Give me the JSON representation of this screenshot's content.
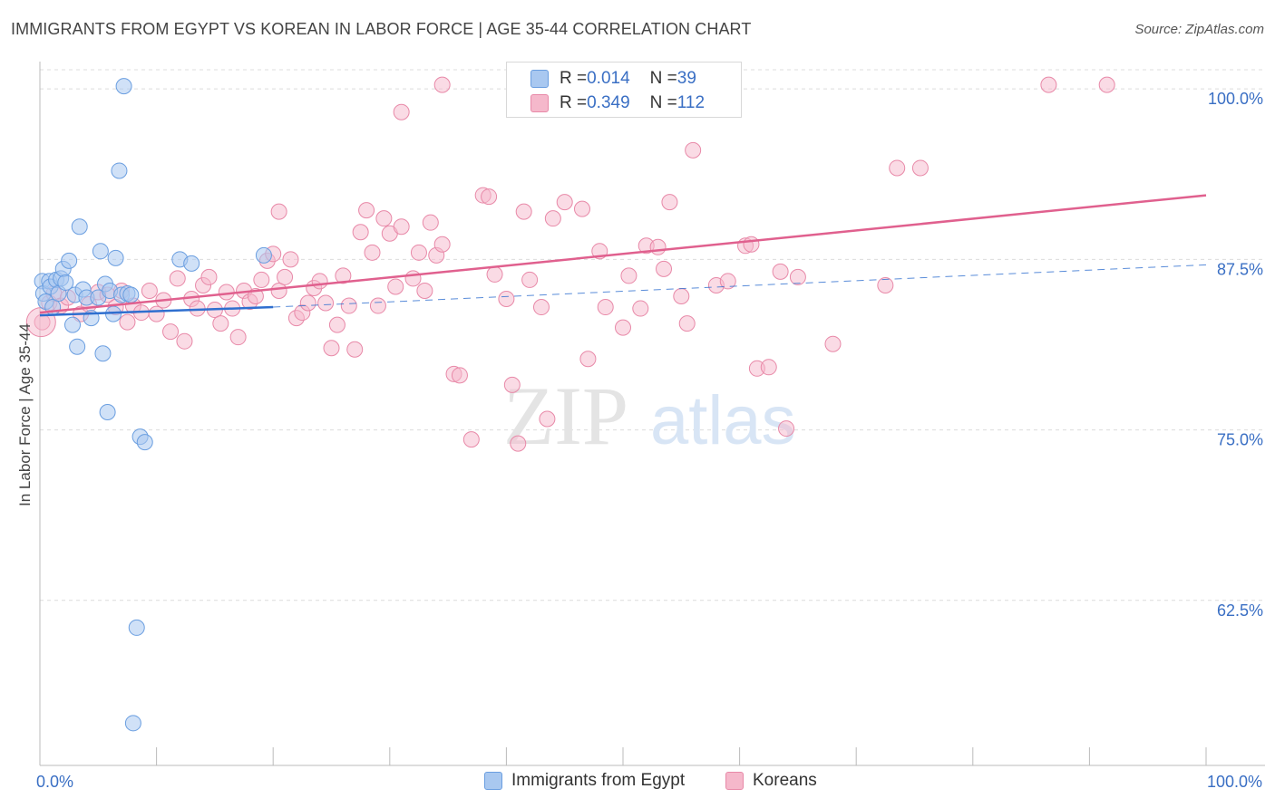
{
  "title": "IMMIGRANTS FROM EGYPT VS KOREAN IN LABOR FORCE | AGE 35-44 CORRELATION CHART",
  "source": "Source: ZipAtlas.com",
  "watermark": {
    "zip": "ZIP",
    "atlas": "atlas"
  },
  "colors": {
    "egypt_fill": "#a9c8f0",
    "egypt_stroke": "#6a9ee0",
    "egypt_line": "#2f6fcf",
    "korean_fill": "#f5b8cb",
    "korean_stroke": "#e889a8",
    "korean_line": "#e0608e",
    "axis_label": "#3a6fc4",
    "grid": "#dcdcdc"
  },
  "stats": [
    {
      "r_label": "R = ",
      "r_value": "0.014",
      "n_label": "N = ",
      "n_value": "39"
    },
    {
      "r_label": "R = ",
      "r_value": "0.349",
      "n_label": "N = ",
      "n_value": "112"
    }
  ],
  "chart_data": {
    "type": "scatter",
    "ylabel": "In Labor Force | Age 35-44",
    "xlim": [
      0,
      100
    ],
    "ylim": [
      50.4,
      102
    ],
    "x_tick_labels": [
      {
        "value": 0,
        "label": "0.0%"
      },
      {
        "value": 100,
        "label": "100.0%"
      }
    ],
    "y_tick_labels": [
      {
        "value": 100.0,
        "label": "100.0%"
      },
      {
        "value": 87.5,
        "label": "87.5%"
      },
      {
        "value": 75.0,
        "label": "75.0%"
      },
      {
        "value": 62.5,
        "label": "62.5%"
      }
    ],
    "grid": "horizontal dashed",
    "legend": "bottom-center",
    "series": [
      {
        "name": "Immigrants from Egypt",
        "trend": {
          "x0": 0,
          "y0": 83.4,
          "x1": 20,
          "y1": 84.0,
          "dashed_to": 100,
          "dashed_y1": 87.1
        },
        "points": [
          [
            0.2,
            85.9
          ],
          [
            0.3,
            85.0
          ],
          [
            0.5,
            84.4
          ],
          [
            0.8,
            85.9
          ],
          [
            0.9,
            85.5
          ],
          [
            1.1,
            84.0
          ],
          [
            1.4,
            86.0
          ],
          [
            1.6,
            85.0
          ],
          [
            1.8,
            86.1
          ],
          [
            2.0,
            86.8
          ],
          [
            2.2,
            85.8
          ],
          [
            2.5,
            87.4
          ],
          [
            2.8,
            82.7
          ],
          [
            3.0,
            84.9
          ],
          [
            3.2,
            81.1
          ],
          [
            3.4,
            89.9
          ],
          [
            3.7,
            85.3
          ],
          [
            4.0,
            84.7
          ],
          [
            4.4,
            83.2
          ],
          [
            5.0,
            84.7
          ],
          [
            5.2,
            88.1
          ],
          [
            5.4,
            80.6
          ],
          [
            5.6,
            85.7
          ],
          [
            5.8,
            76.3
          ],
          [
            6.0,
            85.2
          ],
          [
            6.3,
            83.5
          ],
          [
            6.5,
            87.6
          ],
          [
            6.8,
            94.0
          ],
          [
            7.0,
            84.9
          ],
          [
            7.2,
            100.2
          ],
          [
            7.5,
            85.0
          ],
          [
            7.8,
            84.9
          ],
          [
            8.0,
            53.5
          ],
          [
            8.3,
            60.5
          ],
          [
            8.6,
            74.5
          ],
          [
            9.0,
            74.1
          ],
          [
            12.0,
            87.5
          ],
          [
            13.0,
            87.2
          ],
          [
            19.2,
            87.8
          ]
        ]
      },
      {
        "name": "Koreans",
        "trend": {
          "x0": 0,
          "y0": 83.6,
          "x1": 100,
          "y1": 92.2
        },
        "points": [
          [
            0.2,
            82.9
          ],
          [
            0.8,
            84.3
          ],
          [
            1.2,
            85.0
          ],
          [
            1.8,
            84.1
          ],
          [
            2.4,
            84.7
          ],
          [
            3.5,
            83.5
          ],
          [
            4.2,
            84.2
          ],
          [
            5.0,
            85.1
          ],
          [
            5.8,
            84.9
          ],
          [
            6.5,
            84.0
          ],
          [
            7.0,
            85.2
          ],
          [
            7.5,
            82.9
          ],
          [
            8.0,
            84.1
          ],
          [
            8.7,
            83.6
          ],
          [
            9.4,
            85.2
          ],
          [
            10.0,
            83.5
          ],
          [
            10.6,
            84.5
          ],
          [
            11.2,
            82.2
          ],
          [
            11.8,
            86.1
          ],
          [
            12.4,
            81.5
          ],
          [
            13.0,
            84.6
          ],
          [
            13.5,
            83.9
          ],
          [
            14.0,
            85.6
          ],
          [
            14.5,
            86.2
          ],
          [
            15.0,
            83.8
          ],
          [
            15.5,
            82.8
          ],
          [
            16.0,
            85.1
          ],
          [
            16.5,
            83.9
          ],
          [
            17.0,
            81.8
          ],
          [
            17.5,
            85.2
          ],
          [
            18.0,
            84.4
          ],
          [
            18.5,
            84.8
          ],
          [
            19.0,
            86.0
          ],
          [
            19.5,
            87.4
          ],
          [
            20.0,
            87.9
          ],
          [
            20.5,
            85.2
          ],
          [
            21.0,
            86.2
          ],
          [
            21.5,
            87.5
          ],
          [
            22.0,
            83.2
          ],
          [
            22.5,
            83.6
          ],
          [
            23.0,
            84.3
          ],
          [
            23.5,
            85.4
          ],
          [
            24.0,
            85.9
          ],
          [
            24.5,
            84.3
          ],
          [
            25.0,
            81.0
          ],
          [
            25.5,
            82.7
          ],
          [
            26.0,
            86.3
          ],
          [
            26.5,
            84.1
          ],
          [
            27.0,
            80.9
          ],
          [
            27.5,
            89.5
          ],
          [
            28.0,
            91.1
          ],
          [
            28.5,
            88.0
          ],
          [
            29.0,
            84.1
          ],
          [
            29.5,
            90.5
          ],
          [
            30.0,
            89.4
          ],
          [
            30.5,
            85.5
          ],
          [
            31.0,
            89.9
          ],
          [
            32.0,
            86.1
          ],
          [
            32.5,
            88.0
          ],
          [
            33.0,
            85.2
          ],
          [
            33.5,
            90.2
          ],
          [
            34.0,
            87.8
          ],
          [
            34.5,
            88.6
          ],
          [
            35.5,
            79.1
          ],
          [
            36.0,
            79.0
          ],
          [
            37.0,
            74.3
          ],
          [
            38.0,
            92.2
          ],
          [
            38.5,
            92.1
          ],
          [
            39.0,
            86.4
          ],
          [
            40.0,
            84.6
          ],
          [
            40.5,
            78.3
          ],
          [
            41.0,
            74.0
          ],
          [
            41.5,
            91.0
          ],
          [
            42.0,
            86.0
          ],
          [
            43.0,
            84.0
          ],
          [
            43.5,
            75.8
          ],
          [
            44.0,
            90.5
          ],
          [
            45.0,
            91.7
          ],
          [
            46.5,
            91.2
          ],
          [
            47.0,
            80.2
          ],
          [
            48.0,
            88.1
          ],
          [
            48.5,
            84.0
          ],
          [
            49.0,
            100.1
          ],
          [
            50.5,
            86.3
          ],
          [
            50.0,
            82.5
          ],
          [
            51.5,
            83.9
          ],
          [
            52.0,
            88.5
          ],
          [
            53.0,
            88.4
          ],
          [
            53.5,
            86.8
          ],
          [
            54.0,
            91.7
          ],
          [
            55.0,
            84.8
          ],
          [
            55.5,
            82.8
          ],
          [
            56.0,
            95.5
          ],
          [
            57.5,
            100.3
          ],
          [
            58.0,
            85.6
          ],
          [
            59.0,
            85.9
          ],
          [
            60.5,
            88.5
          ],
          [
            61.0,
            88.6
          ],
          [
            61.5,
            79.5
          ],
          [
            62.5,
            79.6
          ],
          [
            63.5,
            86.6
          ],
          [
            64.0,
            75.1
          ],
          [
            65.0,
            86.2
          ],
          [
            68.0,
            81.3
          ],
          [
            72.5,
            85.6
          ],
          [
            73.5,
            94.2
          ],
          [
            75.5,
            94.2
          ],
          [
            86.5,
            100.3
          ],
          [
            91.5,
            100.3
          ],
          [
            34.5,
            100.3
          ],
          [
            31.0,
            98.3
          ],
          [
            20.5,
            91.0
          ]
        ]
      }
    ]
  }
}
